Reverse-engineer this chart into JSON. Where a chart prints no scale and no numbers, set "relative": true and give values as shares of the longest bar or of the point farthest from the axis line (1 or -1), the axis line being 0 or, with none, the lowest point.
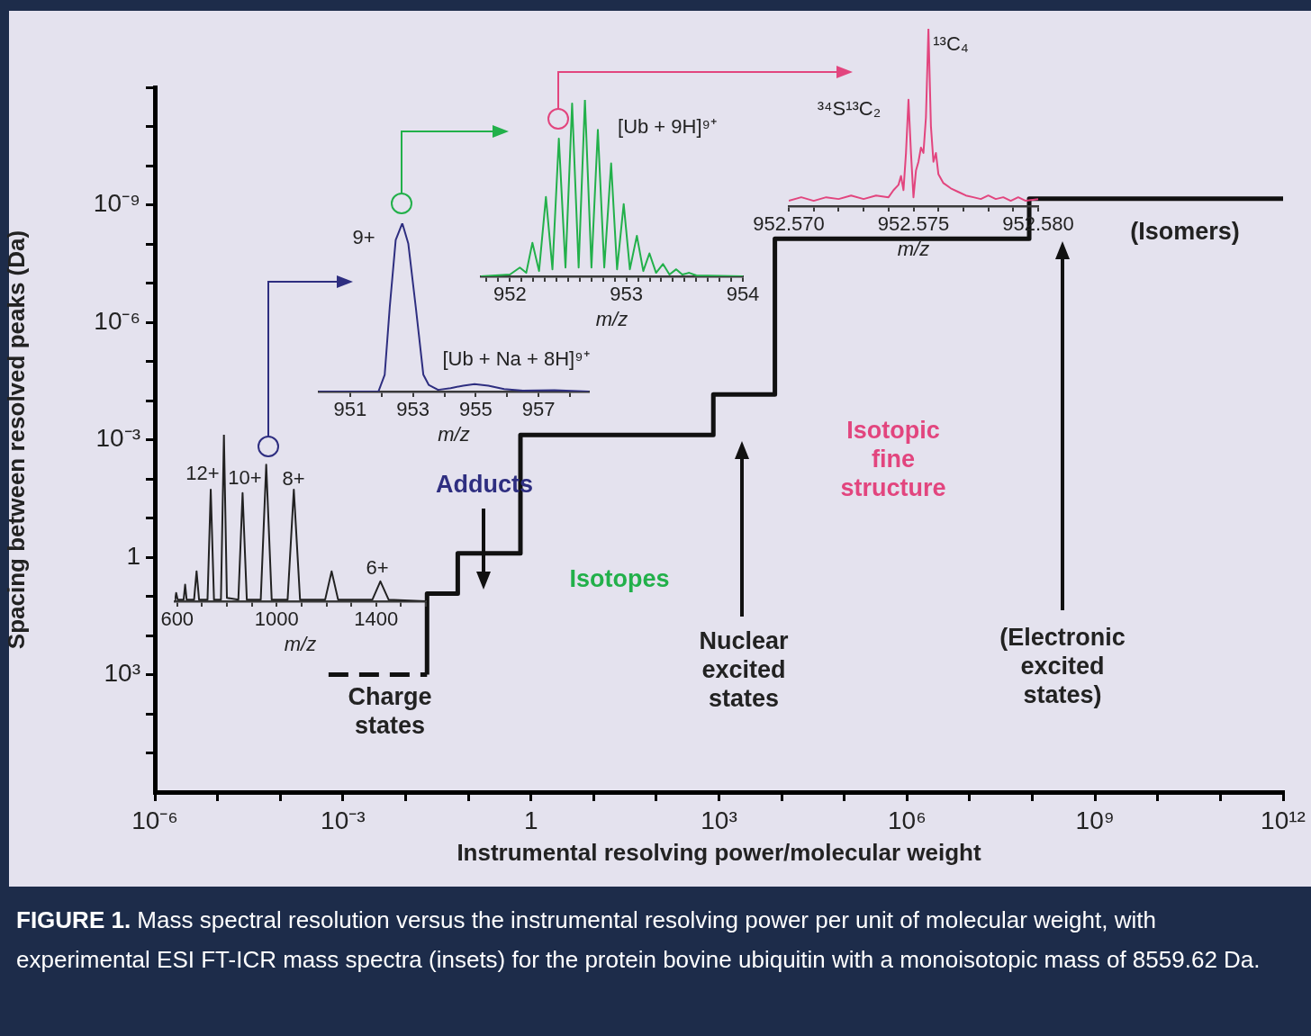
{
  "chart_data": [
    {
      "type": "step",
      "xlabel": "Instrumental resolving power/molecular weight",
      "ylabel": "Spacing between resolved peaks (Da)",
      "log": "xy",
      "marker": "none",
      "xlim": [
        1e-06,
        1000000000000.0
      ],
      "ylim": [
        1000000.0,
        1e-12
      ],
      "xticks": [
        {
          "value": 1e-06,
          "label": "10⁻⁶"
        },
        {
          "value": 1e-05,
          "label": null
        },
        {
          "value": 0.0001,
          "label": null
        },
        {
          "value": 0.001,
          "label": "10⁻³"
        },
        {
          "value": 0.01,
          "label": null
        },
        {
          "value": 0.1,
          "label": null
        },
        1,
        {
          "value": 10,
          "label": null
        },
        {
          "value": 100,
          "label": null
        },
        {
          "value": 1000.0,
          "label": "10³"
        },
        {
          "value": 10000.0,
          "label": null
        },
        {
          "value": 100000.0,
          "label": null
        },
        {
          "value": 1000000.0,
          "label": "10⁶"
        },
        {
          "value": 10000000.0,
          "label": null
        },
        {
          "value": 100000000.0,
          "label": null
        },
        {
          "value": 1000000000.0,
          "label": "10⁹"
        },
        {
          "value": 10000000000.0,
          "label": null
        },
        {
          "value": 100000000000.0,
          "label": null
        },
        {
          "value": 1000000000000.0,
          "label": "10¹²"
        }
      ],
      "yticks": [
        {
          "value": 1e-12,
          "label": null
        },
        {
          "value": 1e-11,
          "label": null
        },
        {
          "value": 1e-10,
          "label": null
        },
        {
          "value": 1e-09,
          "label": "10⁻⁹"
        },
        {
          "value": 1e-08,
          "label": null
        },
        {
          "value": 1e-07,
          "label": null
        },
        {
          "value": 1e-06,
          "label": "10⁻⁶"
        },
        {
          "value": 1e-05,
          "label": null
        },
        {
          "value": 0.0001,
          "label": null
        },
        {
          "value": 0.001,
          "label": "10⁻³"
        },
        {
          "value": 0.01,
          "label": null
        },
        {
          "value": 0.1,
          "label": null
        },
        1,
        {
          "value": 10,
          "label": null
        },
        {
          "value": 100,
          "label": null
        },
        {
          "value": 1000.0,
          "label": "10³"
        },
        {
          "value": 10000.0,
          "label": null
        },
        {
          "value": 100000.0,
          "label": null
        }
      ],
      "series": [
        {
          "color": "#111111",
          "line_style": "dashed",
          "x": [
            0.00059,
            0.022
          ],
          "values": [
            1000,
            1000
          ]
        },
        {
          "color": "#111111",
          "line_style": "solid",
          "x": [
            0.022,
            0.068,
            0.68,
            813,
            7800,
            89000000.0,
            870000000.0,
            1000000000000.0
          ],
          "values": [
            1000,
            8.5,
            0.8,
            0.00076,
            7e-05,
            7.4e-09,
            7e-10,
            7e-10
          ]
        }
      ],
      "annotations": [
        "Charge\nstates",
        "Adducts",
        "Isotopes",
        "Nuclear\nexcited\nstates",
        "Isotopic\nfine\nstructure",
        "(Electronic\nexcited\nstates)",
        "(Isomers)",
        "FIGURE 1. Mass spectral resolution versus the instrumental resolving power per unit of molecular weight, with experimental ESI FT-ICR mass spectra (insets) for the protein bovine ubiquitin with a monoisotopic mass of 8559.62 Da."
      ]
    },
    {
      "type": "line",
      "relative": true,
      "marker": "none",
      "xlabel": "m/z",
      "color": "#222222",
      "xlim": [
        590,
        1600
      ],
      "xticks": [
        600,
        {
          "value": 700,
          "label": null
        },
        {
          "value": 800,
          "label": null
        },
        {
          "value": 900,
          "label": null
        },
        1000,
        {
          "value": 1100,
          "label": null
        },
        {
          "value": 1200,
          "label": null
        },
        {
          "value": 1300,
          "label": null
        },
        1400,
        {
          "value": 1500,
          "label": null
        },
        {
          "value": 1600,
          "label": null
        }
      ],
      "x": [
        590,
        592,
        596,
        602,
        626,
        632,
        638,
        668,
        678,
        688,
        722,
        735,
        748,
        776,
        788,
        800,
        846,
        863,
        880,
        936,
        958,
        980,
        1044,
        1069,
        1094,
        1195,
        1221,
        1247,
        1385,
        1417,
        1450,
        1600
      ],
      "values": [
        0,
        0.01,
        0.05,
        0.01,
        0.01,
        0.1,
        0.01,
        0.01,
        0.18,
        0.01,
        0.01,
        0.67,
        0.01,
        0.01,
        1,
        0.02,
        0.01,
        0.65,
        0.01,
        0.01,
        0.82,
        0.01,
        0.01,
        0.67,
        0.01,
        0.01,
        0.18,
        0.01,
        0.01,
        0.12,
        0.01,
        0
      ],
      "annotations": [
        "12+",
        "10+",
        "8+",
        "6+"
      ]
    },
    {
      "type": "line",
      "relative": true,
      "marker": "none",
      "xlabel": "m/z",
      "color": "#2e2e80",
      "xlim": [
        950,
        958.6
      ],
      "xticks": [
        951,
        {
          "value": 952,
          "label": null
        },
        953,
        {
          "value": 954,
          "label": null
        },
        955,
        {
          "value": 956,
          "label": null
        },
        957,
        {
          "value": 958,
          "label": null
        }
      ],
      "x": [
        950,
        951.9,
        952.1,
        952.26,
        952.45,
        952.66,
        952.85,
        953.09,
        953.33,
        953.5,
        953.8,
        954.2,
        954.6,
        954.96,
        955.4,
        955.9,
        956.5,
        957.5,
        958.6
      ],
      "values": [
        0,
        0,
        0.1,
        0.5,
        0.9,
        1,
        0.88,
        0.5,
        0.1,
        0.04,
        0.01,
        0.02,
        0.035,
        0.044,
        0.035,
        0.015,
        0.005,
        0.008,
        0
      ],
      "annotations": [
        "9+",
        "[Ub + Na + 8H]⁹⁺"
      ]
    },
    {
      "type": "line",
      "relative": true,
      "marker": "none",
      "xlabel": "m/z",
      "color": "#22b04a",
      "xlim": [
        951.75,
        954
      ],
      "xticks": [
        {
          "value": 951.8,
          "label": null
        },
        {
          "value": 951.9,
          "label": null
        },
        952,
        {
          "value": 952.1,
          "label": null
        },
        {
          "value": 952.2,
          "label": null
        },
        {
          "value": 952.3,
          "label": null
        },
        {
          "value": 952.4,
          "label": null
        },
        {
          "value": 952.5,
          "label": null
        },
        {
          "value": 952.6,
          "label": null
        },
        {
          "value": 952.7,
          "label": null
        },
        {
          "value": 952.8,
          "label": null
        },
        {
          "value": 952.9,
          "label": null
        },
        953,
        {
          "value": 953.1,
          "label": null
        },
        {
          "value": 953.2,
          "label": null
        },
        {
          "value": 953.3,
          "label": null
        },
        {
          "value": 953.4,
          "label": null
        },
        {
          "value": 953.5,
          "label": null
        },
        {
          "value": 953.6,
          "label": null
        },
        {
          "value": 953.7,
          "label": null
        },
        {
          "value": 953.8,
          "label": null
        },
        {
          "value": 953.9,
          "label": null
        },
        954
      ],
      "x": [
        951.75,
        952.0,
        952.085,
        952.14,
        952.193,
        952.25,
        952.309,
        952.365,
        952.42,
        952.477,
        952.534,
        952.59,
        952.644,
        952.7,
        952.755,
        952.81,
        952.869,
        952.92,
        952.977,
        953.03,
        953.09,
        953.145,
        953.198,
        953.255,
        953.314,
        953.37,
        953.428,
        953.48,
        953.539,
        953.6,
        954
      ],
      "values": [
        0,
        0.01,
        0.05,
        0.02,
        0.19,
        0.03,
        0.45,
        0.04,
        0.78,
        0.05,
        0.98,
        0.05,
        1,
        0.05,
        0.83,
        0.05,
        0.64,
        0.04,
        0.41,
        0.04,
        0.23,
        0.03,
        0.13,
        0.02,
        0.07,
        0.01,
        0.04,
        0.01,
        0.02,
        0.005,
        0
      ],
      "annotations": [
        "[Ub + 9H]⁹⁺"
      ]
    },
    {
      "type": "line",
      "relative": true,
      "marker": "none",
      "xlabel": "m/z",
      "color": "#e2457e",
      "xlim": [
        952.57,
        952.58
      ],
      "xticks": [
        {
          "value": 952.57,
          "label": "952.570"
        },
        {
          "value": 952.571,
          "label": null
        },
        {
          "value": 952.572,
          "label": null
        },
        {
          "value": 952.573,
          "label": null
        },
        {
          "value": 952.574,
          "label": null
        },
        {
          "value": 952.575,
          "label": "952.575"
        },
        {
          "value": 952.576,
          "label": null
        },
        {
          "value": 952.577,
          "label": null
        },
        {
          "value": 952.578,
          "label": null
        },
        {
          "value": 952.579,
          "label": null
        },
        {
          "value": 952.58,
          "label": "952.580"
        }
      ],
      "x": [
        952.57,
        952.5705,
        952.571,
        952.5715,
        952.572,
        952.5725,
        952.573,
        952.5735,
        952.574,
        952.5742,
        952.5744,
        952.5745,
        952.5746,
        952.5747,
        952.5748,
        952.5749,
        952.575,
        952.5751,
        952.5752,
        952.5753,
        952.5754,
        952.5755,
        952.5756,
        952.5757,
        952.5758,
        952.5759,
        952.576,
        952.5762,
        952.5765,
        952.5768,
        952.5771,
        952.5774,
        952.5777,
        952.578,
        952.5783,
        952.5786,
        952.5789,
        952.5792,
        952.5795,
        952.58
      ],
      "values": [
        0.03,
        0.05,
        0.03,
        0.05,
        0.04,
        0.06,
        0.04,
        0.06,
        0.05,
        0.09,
        0.12,
        0.17,
        0.09,
        0.3,
        0.6,
        0.3,
        0.05,
        0.2,
        0.25,
        0.33,
        0.3,
        0.5,
        1,
        0.45,
        0.25,
        0.3,
        0.18,
        0.13,
        0.1,
        0.08,
        0.06,
        0.05,
        0.04,
        0.06,
        0.04,
        0.05,
        0.03,
        0.05,
        0.03,
        0.04
      ],
      "annotations": [
        "³⁴S¹³C₂",
        "¹³C₄"
      ]
    }
  ]
}
